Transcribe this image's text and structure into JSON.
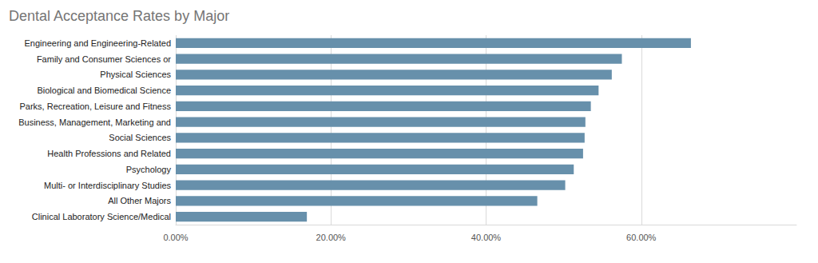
{
  "chart_data": {
    "type": "bar",
    "orientation": "horizontal",
    "title": "Dental Acceptance Rates by Major",
    "categories": [
      "Engineering and Engineering-Related",
      "Family and Consumer Sciences or",
      "Physical Sciences",
      "Biological and Biomedical Science",
      "Parks, Recreation, Leisure and Fitness",
      "Business, Management, Marketing and",
      "Social Sciences",
      "Health Professions and Related",
      "Psychology",
      "Multi- or Interdisciplinary Studies",
      "All Other Majors",
      "Clinical Laboratory Science/Medical"
    ],
    "values": [
      66.4,
      57.5,
      56.2,
      54.5,
      53.5,
      52.8,
      52.7,
      52.5,
      51.3,
      50.2,
      46.6,
      16.9
    ],
    "color": "#6790ab",
    "xlim": [
      0,
      80
    ],
    "xticks": [
      {
        "value": 0,
        "label": "0.00%"
      },
      {
        "value": 20,
        "label": "20.00%"
      },
      {
        "value": 40,
        "label": "40.00%"
      },
      {
        "value": 60,
        "label": "60.00%"
      }
    ],
    "grid": true
  }
}
